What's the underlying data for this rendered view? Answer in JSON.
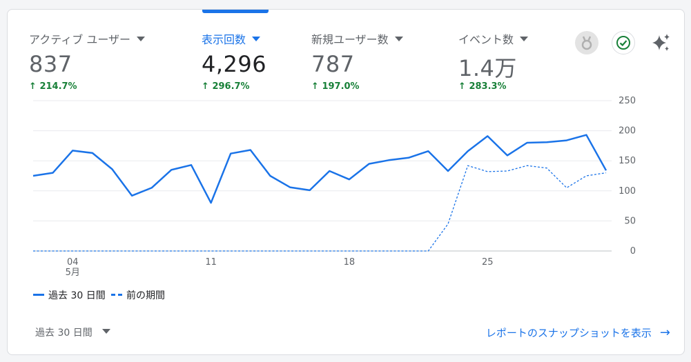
{
  "metrics": [
    {
      "title": "アクティブ ユーザー",
      "value": "837",
      "change": "214.7%"
    },
    {
      "title": "表示回数",
      "value": "4,296",
      "change": "296.7%"
    },
    {
      "title": "新規ユーザー数",
      "value": "787",
      "change": "197.0%"
    },
    {
      "title": "イベント数",
      "value": "1.4万",
      "change": "283.3%"
    }
  ],
  "icons": {
    "badge": "medal-icon",
    "status": "check-circle-icon",
    "insights": "sparkle-icon"
  },
  "legend": {
    "current": "過去 30 日間",
    "previous": "前の期間"
  },
  "footer": {
    "period": "過去 30 日間",
    "report_link": "レポートのスナップショットを表示"
  },
  "colors": {
    "accent": "#1a73e8",
    "positive": "#188038"
  },
  "chart_data": {
    "type": "line",
    "x_ticks": [
      {
        "label": "04",
        "sublabel": "5月",
        "index": 2
      },
      {
        "label": "11",
        "index": 9
      },
      {
        "label": "18",
        "index": 16
      },
      {
        "label": "25",
        "index": 23
      }
    ],
    "ylim": [
      0,
      250
    ],
    "y_ticks": [
      0,
      50,
      100,
      150,
      200,
      250
    ],
    "series": [
      {
        "name": "過去 30 日間",
        "style": "solid",
        "values": [
          125,
          130,
          167,
          163,
          136,
          92,
          105,
          135,
          143,
          80,
          162,
          168,
          125,
          106,
          101,
          133,
          119,
          145,
          151,
          155,
          166,
          133,
          166,
          191,
          159,
          180,
          181,
          184,
          193,
          134
        ]
      },
      {
        "name": "前の期間",
        "style": "dashed",
        "values": [
          0,
          0,
          0,
          0,
          0,
          0,
          0,
          0,
          0,
          0,
          0,
          0,
          0,
          0,
          0,
          0,
          0,
          0,
          0,
          0,
          0,
          45,
          142,
          132,
          133,
          142,
          138,
          105,
          125,
          130
        ]
      }
    ]
  }
}
